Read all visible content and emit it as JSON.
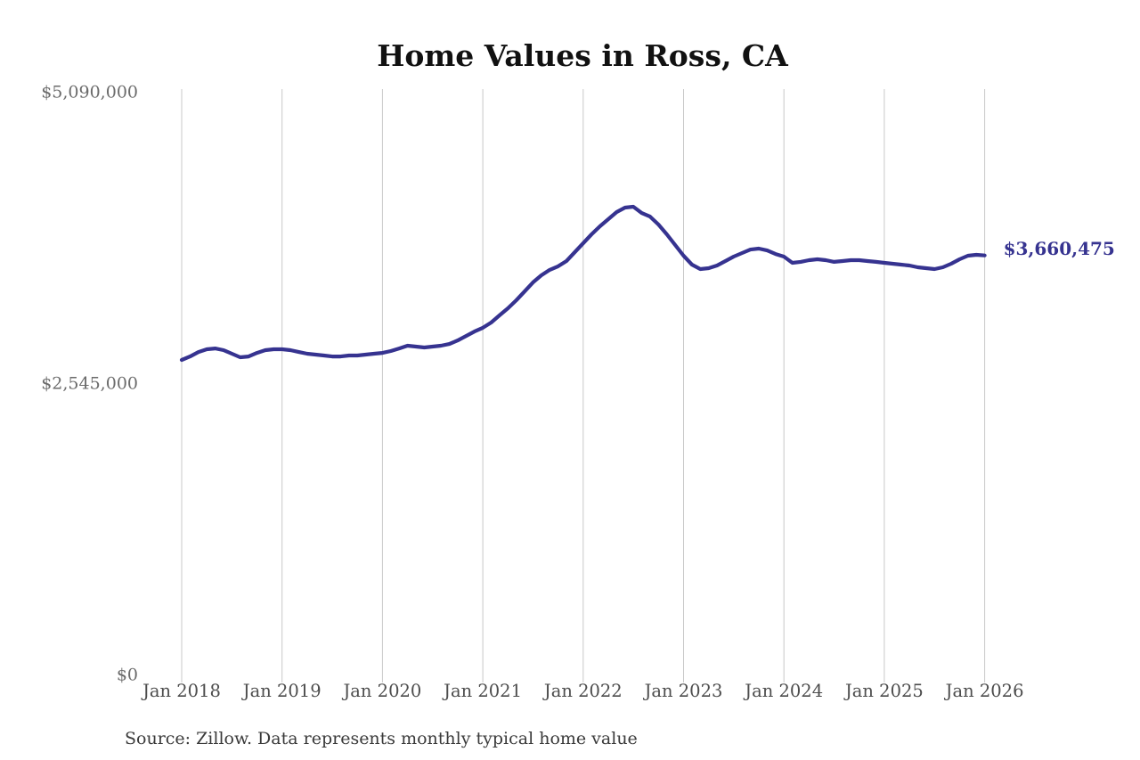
{
  "page": {
    "title": "Home Values in Ross, CA",
    "source_note": "Source: Zillow. Data represents monthly typical home value",
    "end_value_label": "$3,660,475"
  },
  "colors": {
    "background": "#ffffff",
    "line": "#363390",
    "grid": "#c9c9c9",
    "tick": "#b5b5b5",
    "y_tick_label": "#6b6b6b",
    "x_tick_label": "#4d4d4d",
    "title": "#111111",
    "source": "#3a3a3a",
    "end_label": "#363390"
  },
  "chart_data": {
    "type": "line",
    "title": "Home Values in Ross, CA",
    "x_unit": "month",
    "x_start": "2018-01",
    "x_end": "2026-01",
    "x_tick_labels": [
      "Jan 2018",
      "Jan 2019",
      "Jan 2020",
      "Jan 2021",
      "Jan 2022",
      "Jan 2023",
      "Jan 2024",
      "Jan 2025",
      "Jan 2026"
    ],
    "x_tick_month_indices": [
      0,
      12,
      24,
      36,
      48,
      60,
      72,
      84,
      96
    ],
    "y_ticks": [
      {
        "label": "$5,090,000",
        "value": 5090000
      },
      {
        "label": "$2,545,000",
        "value": 2545000
      },
      {
        "label": "$0",
        "value": 0
      }
    ],
    "ylim": [
      0,
      5090000
    ],
    "grid": "vertical-only",
    "legend": "none",
    "end_annotation": {
      "label": "$3,660,475",
      "value": 3660475
    },
    "series": [
      {
        "name": "Typical home value",
        "values": [
          2747000,
          2778000,
          2817000,
          2841000,
          2848000,
          2833000,
          2802000,
          2771000,
          2778000,
          2809000,
          2833000,
          2841000,
          2841000,
          2833000,
          2817000,
          2802000,
          2794000,
          2786000,
          2778000,
          2778000,
          2786000,
          2786000,
          2794000,
          2802000,
          2809000,
          2825000,
          2848000,
          2872000,
          2864000,
          2856000,
          2864000,
          2872000,
          2887000,
          2918000,
          2957000,
          2996000,
          3028000,
          3074000,
          3137000,
          3199000,
          3269000,
          3347000,
          3425000,
          3487000,
          3534000,
          3565000,
          3611000,
          3689000,
          3767000,
          3845000,
          3915000,
          3977000,
          4039000,
          4078000,
          4086000,
          4031000,
          4000000,
          3930000,
          3845000,
          3751000,
          3658000,
          3580000,
          3541000,
          3549000,
          3572000,
          3611000,
          3650000,
          3681000,
          3712000,
          3720000,
          3704000,
          3673000,
          3650000,
          3596000,
          3604000,
          3619000,
          3627000,
          3619000,
          3604000,
          3611000,
          3619000,
          3619000,
          3611000,
          3604000,
          3596000,
          3588000,
          3580000,
          3572000,
          3557000,
          3549000,
          3541000,
          3557000,
          3588000,
          3627000,
          3658000,
          3666000,
          3660475
        ]
      }
    ]
  }
}
